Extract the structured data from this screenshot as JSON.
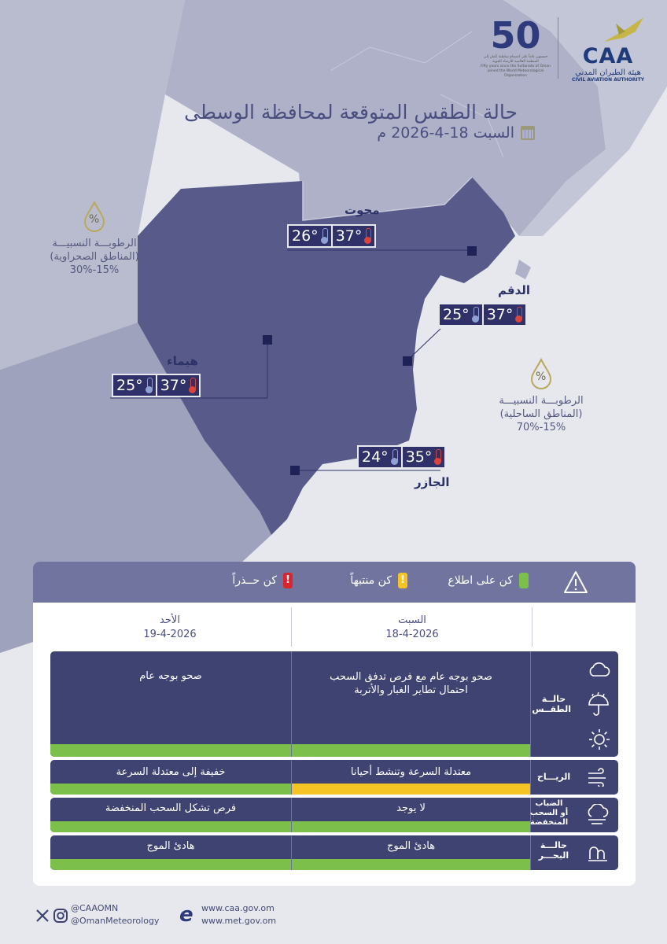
{
  "header": {
    "title": "حالة الطقس المتوقعة لمحافظة الوسطى",
    "date": "السبت 18-4-2026 م"
  },
  "logos": {
    "caa_abbr": "CAA",
    "caa_ar": "هيئة الطيران المدني",
    "caa_en": "CIVIL AVIATION AUTHORITY",
    "anniv_num": "50",
    "anniv_ar": "خمسون عاماً على انضمام سلطنة عُمان إلى المنظمة العالمية للأرصاد الجوية",
    "anniv_en": "Fifty years since the Sultanate of Oman joined the World Meteorological Organization"
  },
  "cities": [
    {
      "name": "محوت",
      "max": "37°",
      "min": "26°"
    },
    {
      "name": "الدقم",
      "max": "37°",
      "min": "25°"
    },
    {
      "name": "هيماء",
      "max": "37°",
      "min": "25°"
    },
    {
      "name": "الجازر",
      "max": "35°",
      "min": "24°"
    }
  ],
  "humidity": {
    "desert_label": "الرطوبـــة النسبيـــة",
    "desert_sub": "(المناطق الصحراوية)",
    "desert_value": "15%-30%",
    "coastal_label": "الرطوبـــة النسبيـــة",
    "coastal_sub": "(المناطق الساحلية)",
    "coastal_value": "15%-70%",
    "icon_symbol": "%"
  },
  "legend": {
    "aware": "كن على اطلاع",
    "alert": "كن منتبهاً",
    "caution": "كن حــذراً",
    "colors": {
      "green": "#7cc04b",
      "yellow": "#f4c324",
      "red": "#d9262e"
    }
  },
  "days": [
    {
      "name": "السبت",
      "date": "18-4-2026"
    },
    {
      "name": "الأحد",
      "date": "19-4-2026"
    }
  ],
  "rows": {
    "weather": {
      "label": "حالــة الطقــس",
      "sat": [
        "صحو بوجه عام مع فرص تدفق السحب",
        "احتمال تطاير الغبار والأتربة"
      ],
      "sun": "صحو بوجه عام"
    },
    "wind": {
      "label": "الريـــاح",
      "sat": "معتدلة السرعة وتنشط أحيانا",
      "sun": "خفيفة إلى معتدلة السرعة"
    },
    "fog": {
      "label": [
        "الضباب",
        "أو السحب",
        "المنخفضة"
      ],
      "sat": "لا يوجد",
      "sun": "فرص تشكل السحب المنخفضة"
    },
    "sea": {
      "label": [
        "حالـــة",
        "البحـــر"
      ],
      "sat": "هادئ الموج",
      "sun": "هادئ الموج"
    }
  },
  "footer": {
    "x_handle": "@CAAOMN",
    "ig_handle": "@OmanMeteorology",
    "site1": "www.caa.gov.om",
    "site2": "www.met.gov.om"
  }
}
